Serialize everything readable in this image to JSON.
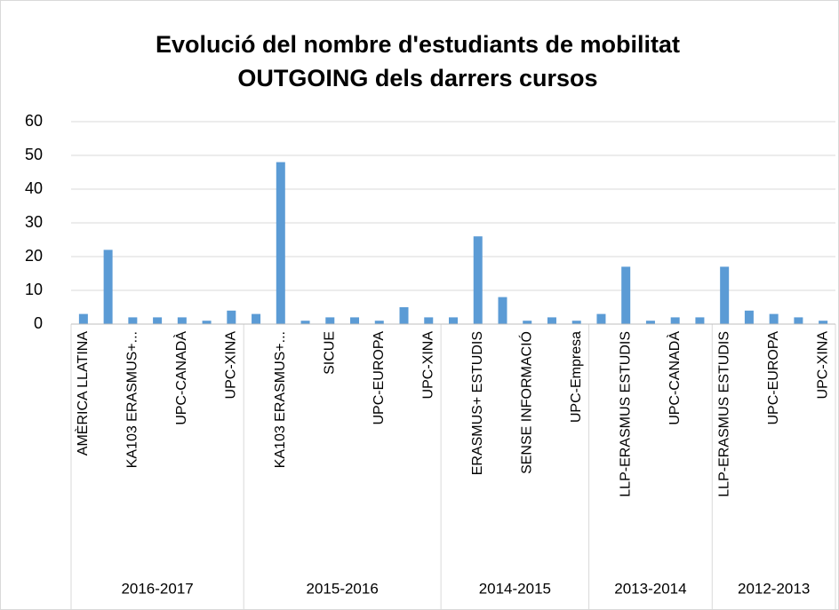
{
  "chart_data": {
    "type": "bar",
    "title": [
      "Evolució del nombre d'estudiants de mobilitat",
      "OUTGOING dels darrers cursos"
    ],
    "color": "#5b9bd5",
    "groups": [
      {
        "name": "2016-2017",
        "categories": [
          "AMÈRICA LLATINA",
          null,
          "KA103 ERASMUS+...",
          null,
          "UPC-CANADÀ",
          null,
          "UPC-XINA"
        ],
        "values": [
          3,
          22,
          2,
          2,
          2,
          1,
          4
        ]
      },
      {
        "name": "2015-2016",
        "categories": [
          null,
          "KA103 ERASMUS+...",
          null,
          "SICUE",
          null,
          "UPC-EUROPA",
          null,
          "UPC-XINA"
        ],
        "values": [
          3,
          48,
          1,
          2,
          2,
          1,
          5,
          2
        ]
      },
      {
        "name": "2014-2015",
        "categories": [
          null,
          "ERASMUS+  ESTUDIS",
          null,
          "SENSE INFORMACIÓ",
          null,
          "UPC-Empresa"
        ],
        "values": [
          2,
          26,
          8,
          1,
          2,
          1
        ]
      },
      {
        "name": "2013-2014",
        "categories": [
          null,
          "LLP-ERASMUS ESTUDIS",
          null,
          "UPC-CANADÀ",
          null
        ],
        "values": [
          3,
          17,
          1,
          2,
          2
        ]
      },
      {
        "name": "2012-2013",
        "categories": [
          "LLP-ERASMUS ESTUDIS",
          null,
          "UPC-EUROPA",
          null,
          "UPC-XINA"
        ],
        "values": [
          17,
          4,
          3,
          2,
          1
        ]
      }
    ],
    "ylim": [
      0,
      60
    ],
    "yticks": [
      0,
      10,
      20,
      30,
      40,
      50,
      60
    ],
    "grid": true
  }
}
